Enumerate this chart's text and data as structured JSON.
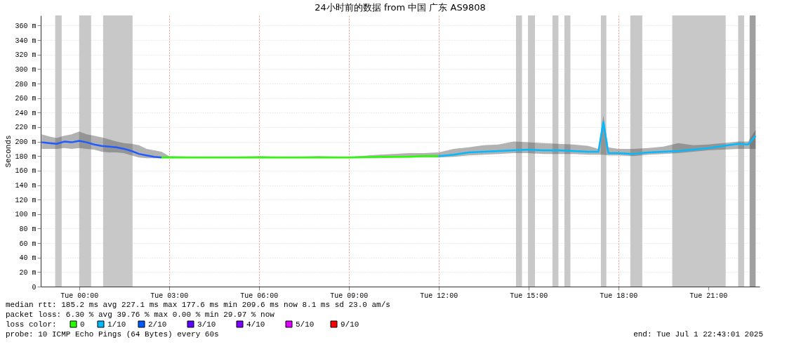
{
  "chart_data": {
    "type": "line",
    "title": "24小时前的数据 from 中国 广东 AS9808",
    "ylabel": "Seconds",
    "xlim": [
      "2025-06-30T22:43",
      "2025-07-01T22:43"
    ],
    "xticks": [
      {
        "value": "2025-07-01T00:00",
        "label": "Tue 00:00"
      },
      {
        "value": "2025-07-01T03:00",
        "label": "Tue 03:00"
      },
      {
        "value": "2025-07-01T06:00",
        "label": "Tue 06:00"
      },
      {
        "value": "2025-07-01T09:00",
        "label": "Tue 09:00"
      },
      {
        "value": "2025-07-01T12:00",
        "label": "Tue 12:00"
      },
      {
        "value": "2025-07-01T15:00",
        "label": "Tue 15:00"
      },
      {
        "value": "2025-07-01T18:00",
        "label": "Tue 18:00"
      },
      {
        "value": "2025-07-01T21:00",
        "label": "Tue 21:00"
      }
    ],
    "ylim": [
      0,
      374
    ],
    "yticks": [
      0,
      {
        "value": 20,
        "label": "20 m"
      },
      {
        "value": 40,
        "label": "40 m"
      },
      {
        "value": 60,
        "label": "60 m"
      },
      {
        "value": 80,
        "label": "80 m"
      },
      {
        "value": 100,
        "label": "100 m"
      },
      {
        "value": 120,
        "label": "120 m"
      },
      {
        "value": 140,
        "label": "140 m"
      },
      {
        "value": 160,
        "label": "160 m"
      },
      {
        "value": 180,
        "label": "180 m"
      },
      {
        "value": 200,
        "label": "200 m"
      },
      {
        "value": 220,
        "label": "220 m"
      },
      {
        "value": 240,
        "label": "240 m"
      },
      {
        "value": 260,
        "label": "260 m"
      },
      {
        "value": 280,
        "label": "280 m"
      },
      {
        "value": 300,
        "label": "300 m"
      },
      {
        "value": 320,
        "label": "320 m"
      },
      {
        "value": 340,
        "label": "340 m"
      },
      {
        "value": 360,
        "label": "360 m"
      }
    ],
    "grid": true,
    "marker": "none",
    "line_style": "solid",
    "series": [
      {
        "color": "#1f5bff",
        "x": [
          "2025-06-30T22:45",
          "2025-06-30T23:00",
          "2025-06-30T23:15",
          "2025-06-30T23:30",
          "2025-06-30T23:45",
          "2025-07-01T00:00",
          "2025-07-01T00:15",
          "2025-07-01T00:30",
          "2025-07-01T00:45",
          "2025-07-01T01:00",
          "2025-07-01T01:15",
          "2025-07-01T01:30",
          "2025-07-01T01:45",
          "2025-07-01T02:00",
          "2025-07-01T02:15",
          "2025-07-01T02:30",
          "2025-07-01T02:45"
        ],
        "values": [
          199,
          198,
          197,
          200,
          199,
          201,
          199,
          196,
          194,
          193,
          192,
          190,
          187,
          183,
          181,
          179,
          178
        ],
        "lower": [
          190,
          190,
          190,
          191,
          190,
          191,
          190,
          189,
          186,
          185,
          185,
          184,
          181,
          178,
          177,
          177,
          177
        ],
        "upper": [
          210,
          207,
          205,
          208,
          210,
          214,
          210,
          208,
          206,
          203,
          200,
          198,
          197,
          195,
          190,
          188,
          186
        ]
      },
      {
        "color": "#26ff00",
        "x": [
          "2025-07-01T02:45",
          "2025-07-01T03:00",
          "2025-07-01T04:00",
          "2025-07-01T05:00",
          "2025-07-01T06:00",
          "2025-07-01T07:00",
          "2025-07-01T08:00",
          "2025-07-01T09:00",
          "2025-07-01T10:00",
          "2025-07-01T11:00",
          "2025-07-01T11:30",
          "2025-07-01T12:00"
        ],
        "values": [
          178,
          178,
          178,
          178,
          178,
          178,
          178,
          178,
          179,
          179,
          180,
          180
        ],
        "lower": [
          177,
          177,
          177,
          177,
          177,
          177,
          177,
          177,
          177,
          178,
          178,
          178
        ],
        "upper": [
          186,
          180,
          179,
          179,
          180,
          179,
          180,
          179,
          182,
          184,
          184,
          185
        ]
      },
      {
        "color": "#00bbff",
        "x": [
          "2025-07-01T12:00",
          "2025-07-01T12:30",
          "2025-07-01T13:00",
          "2025-07-01T13:30",
          "2025-07-01T14:00",
          "2025-07-01T14:30",
          "2025-07-01T15:00",
          "2025-07-01T15:30",
          "2025-07-01T16:00",
          "2025-07-01T16:30",
          "2025-07-01T17:00",
          "2025-07-01T17:20",
          "2025-07-01T17:30",
          "2025-07-01T17:40",
          "2025-07-01T18:00",
          "2025-07-01T18:30",
          "2025-07-01T19:00",
          "2025-07-01T19:30",
          "2025-07-01T20:00",
          "2025-07-01T20:30",
          "2025-07-01T21:00",
          "2025-07-01T21:30",
          "2025-07-01T22:00",
          "2025-07-01T22:20",
          "2025-07-01T22:35"
        ],
        "values": [
          180,
          182,
          185,
          186,
          187,
          188,
          189,
          188,
          188,
          187,
          186,
          186,
          227,
          184,
          184,
          183,
          185,
          186,
          187,
          189,
          191,
          194,
          197,
          196,
          208
        ],
        "lower": [
          178,
          179,
          181,
          182,
          183,
          184,
          184,
          183,
          183,
          183,
          182,
          182,
          182,
          181,
          181,
          180,
          182,
          183,
          184,
          186,
          188,
          189,
          190,
          190,
          190
        ],
        "upper": [
          185,
          190,
          192,
          195,
          196,
          200,
          199,
          198,
          197,
          196,
          194,
          190,
          236,
          192,
          190,
          190,
          191,
          193,
          198,
          195,
          196,
          198,
          200,
          200,
          216
        ]
      }
    ],
    "bands": [
      {
        "axis": "x",
        "from": "2025-06-30T23:12",
        "to": "2025-06-30T23:25",
        "color": "#c8c8c8"
      },
      {
        "axis": "x",
        "from": "2025-07-01T00:00",
        "to": "2025-07-01T00:24",
        "color": "#c8c8c8"
      },
      {
        "axis": "x",
        "from": "2025-07-01T00:48",
        "to": "2025-07-01T01:47",
        "color": "#c8c8c8"
      },
      {
        "axis": "x",
        "from": "2025-07-01T14:35",
        "to": "2025-07-01T14:47",
        "color": "#c8c8c8"
      },
      {
        "axis": "x",
        "from": "2025-07-01T14:59",
        "to": "2025-07-01T15:13",
        "color": "#c8c8c8"
      },
      {
        "axis": "x",
        "from": "2025-07-01T15:48",
        "to": "2025-07-01T16:00",
        "color": "#c8c8c8"
      },
      {
        "axis": "x",
        "from": "2025-07-01T16:12",
        "to": "2025-07-01T16:24",
        "color": "#c8c8c8"
      },
      {
        "axis": "x",
        "from": "2025-07-01T17:25",
        "to": "2025-07-01T17:36",
        "color": "#c8c8c8"
      },
      {
        "axis": "x",
        "from": "2025-07-01T18:24",
        "to": "2025-07-01T18:48",
        "color": "#c8c8c8"
      },
      {
        "axis": "x",
        "from": "2025-07-01T19:48",
        "to": "2025-07-01T21:35",
        "color": "#c8c8c8"
      },
      {
        "axis": "x",
        "from": "2025-07-01T22:00",
        "to": "2025-07-01T22:12",
        "color": "#c8c8c8"
      },
      {
        "axis": "x",
        "from": "2025-07-01T22:23",
        "to": "2025-07-01T22:35",
        "color": "#a0a0a0"
      }
    ],
    "annotations": [
      "median rtt:  185.2 ms avg  227.1 ms max  177.6 ms min  209.6 ms now  8.1 ms sd  23.0   am/s",
      "packet loss: 6.30 % avg  39.76 % max  0.00 % min  29.97 % now",
      "loss color:",
      "0",
      "1/10",
      "2/10",
      "3/10",
      "4/10",
      "5/10",
      "9/10",
      "probe:       10 ICMP Echo Pings (64 Bytes) every 60s",
      "end: Tue Jul  1 22:43:01 2025"
    ]
  }
}
